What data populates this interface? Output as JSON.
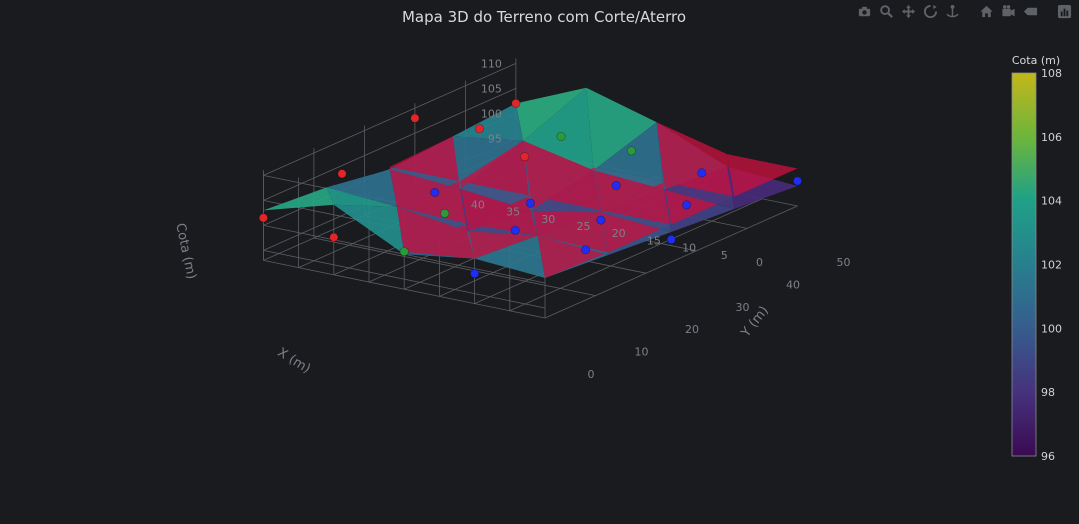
{
  "modebar": {
    "buttons": [
      {
        "icon": "camera-icon"
      },
      {
        "icon": "zoom-icon"
      },
      {
        "icon": "pan-icon"
      },
      {
        "icon": "orbit-rotation-icon"
      },
      {
        "icon": "turntable-rotation-icon"
      },
      {
        "icon": "reset-camera-icon"
      },
      {
        "icon": "last-saved-view-icon"
      },
      {
        "icon": "hover-toggle-icon"
      },
      {
        "icon": "plotly-logo-icon"
      }
    ]
  },
  "colors": {
    "background": "#1a1b1e",
    "cut_surface": "#c8103f",
    "fill_point": "#1f2ef2",
    "cut_point": "#e0262b",
    "zero_point": "#2a9a3a",
    "grid": "#5a5d63"
  },
  "chart_data": {
    "type": "surface3d",
    "title": "Mapa 3D do Terreno com Corte/Aterro",
    "x_axis": {
      "label": "X (m)",
      "ticks": [
        0,
        5,
        10,
        15,
        20,
        25,
        30,
        35,
        40
      ],
      "range": [
        0,
        40
      ]
    },
    "y_axis": {
      "label": "Y (m)",
      "ticks": [
        0,
        10,
        20,
        30,
        40,
        50
      ],
      "range": [
        0,
        50
      ]
    },
    "z_axis": {
      "label": "Cota (m)",
      "ticks": [
        95,
        100,
        105,
        110
      ],
      "range": [
        93,
        111
      ]
    },
    "colorbar": {
      "title": "Cota (m)",
      "ticks": [
        96,
        98,
        100,
        102,
        104,
        106,
        108
      ],
      "range": [
        96,
        108
      ],
      "colorscale": "viridis"
    },
    "terrain": {
      "x": [
        0,
        10,
        20,
        30,
        40
      ],
      "y": [
        0,
        12.5,
        25,
        37.5,
        50
      ],
      "z": [
        [
          101,
          100,
          99,
          98,
          97
        ],
        [
          102,
          101,
          100,
          99,
          98
        ],
        [
          100,
          99,
          97.5,
          100,
          104
        ],
        [
          107,
          101,
          99,
          103,
          108
        ],
        [
          103,
          102,
          100,
          101,
          102
        ]
      ]
    },
    "design_surface": {
      "z": 100.5,
      "name": ""
    },
    "points": [
      {
        "x": 40,
        "y": 0,
        "z": 101.5,
        "type": "cut"
      },
      {
        "x": 36,
        "y": 10,
        "z": 107,
        "type": "cut"
      },
      {
        "x": 30,
        "y": 20,
        "z": 100.5,
        "type": "fill"
      },
      {
        "x": 40,
        "y": 30,
        "z": 108,
        "type": "cut"
      },
      {
        "x": 38,
        "y": 40,
        "z": 102,
        "type": "cut"
      },
      {
        "x": 40,
        "y": 50,
        "z": 102,
        "type": "cut"
      },
      {
        "x": 30,
        "y": 0,
        "z": 100.5,
        "type": "cut"
      },
      {
        "x": 25,
        "y": 15,
        "z": 100,
        "type": "zero"
      },
      {
        "x": 20,
        "y": 25,
        "z": 99,
        "type": "fill"
      },
      {
        "x": 28,
        "y": 35,
        "z": 101.5,
        "type": "cut"
      },
      {
        "x": 30,
        "y": 45,
        "z": 100.5,
        "type": "zero"
      },
      {
        "x": 20,
        "y": 0,
        "z": 100.5,
        "type": "zero"
      },
      {
        "x": 15,
        "y": 15,
        "z": 99.5,
        "type": "fill"
      },
      {
        "x": 10,
        "y": 25,
        "z": 98.5,
        "type": "fill"
      },
      {
        "x": 15,
        "y": 35,
        "z": 99.5,
        "type": "fill"
      },
      {
        "x": 20,
        "y": 45,
        "z": 100.5,
        "type": "zero"
      },
      {
        "x": 10,
        "y": 0,
        "z": 99,
        "type": "fill"
      },
      {
        "x": 5,
        "y": 15,
        "z": 98.5,
        "type": "fill"
      },
      {
        "x": 0,
        "y": 25,
        "z": 97.5,
        "type": "fill"
      },
      {
        "x": 5,
        "y": 35,
        "z": 98.5,
        "type": "fill"
      },
      {
        "x": 10,
        "y": 45,
        "z": 99,
        "type": "fill"
      },
      {
        "x": 0,
        "y": 50,
        "z": 98,
        "type": "fill"
      }
    ]
  }
}
